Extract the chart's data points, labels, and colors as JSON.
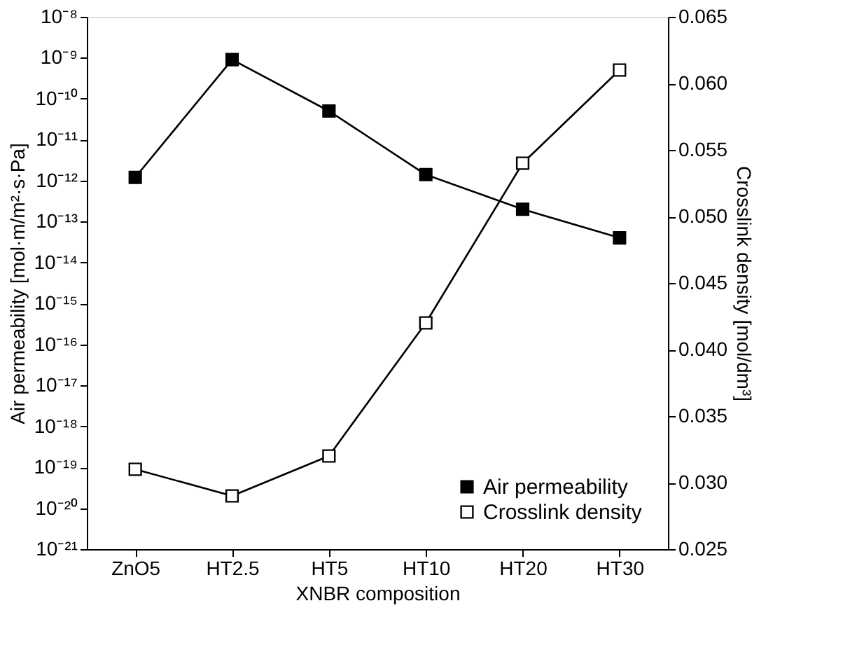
{
  "chart_data": {
    "type": "line",
    "xlabel": "XNBR composition",
    "ylabel": "Air permeability [mol·m/m²·s·Pa]",
    "y2label": "Crosslink density [mol/dm³]",
    "categories": [
      "ZnO5",
      "HT2.5",
      "HT5",
      "HT10",
      "HT20",
      "HT30"
    ],
    "series": [
      {
        "name": "Air permeability",
        "color": "#000000",
        "values": [
          1.2e-12,
          9e-10,
          5e-11,
          1.4e-12,
          2e-13,
          4e-14
        ]
      },
      {
        "name": "Crosslink density",
        "color": "#ffffff",
        "axis": "y2",
        "values": [
          0.031,
          0.029,
          0.032,
          0.042,
          0.054,
          0.061
        ]
      }
    ],
    "log": "y",
    "ylim": [
      1e-21,
      1e-08
    ],
    "yticks": [
      {
        "value": 1e-21,
        "label": "10⁻²¹"
      },
      {
        "value": 1e-20,
        "label": "10⁻²⁰"
      },
      {
        "value": 1e-19,
        "label": "10⁻¹⁹"
      },
      {
        "value": 1e-18,
        "label": "10⁻¹⁸"
      },
      {
        "value": 1e-17,
        "label": "10⁻¹⁷"
      },
      {
        "value": 1e-16,
        "label": "10⁻¹⁶"
      },
      {
        "value": 1e-15,
        "label": "10⁻¹⁵"
      },
      {
        "value": 1e-14,
        "label": "10⁻¹⁴"
      },
      {
        "value": 1e-13,
        "label": "10⁻¹³"
      },
      {
        "value": 1e-12,
        "label": "10⁻¹²"
      },
      {
        "value": 1e-11,
        "label": "10⁻¹¹"
      },
      {
        "value": 1e-10,
        "label": "10⁻¹⁰"
      },
      {
        "value": 1e-09,
        "label": "10⁻⁹"
      },
      {
        "value": 1e-08,
        "label": "10⁻⁸"
      }
    ],
    "y2lim": [
      0.025,
      0.065
    ],
    "y2ticks": [
      {
        "value": 0.025,
        "label": "0.025"
      },
      {
        "value": 0.03,
        "label": "0.030"
      },
      {
        "value": 0.035,
        "label": "0.035"
      },
      {
        "value": 0.04,
        "label": "0.040"
      },
      {
        "value": 0.045,
        "label": "0.045"
      },
      {
        "value": 0.05,
        "label": "0.050"
      },
      {
        "value": 0.055,
        "label": "0.055"
      },
      {
        "value": 0.06,
        "label": "0.060"
      },
      {
        "value": 0.065,
        "label": "0.065"
      }
    ],
    "grid": false,
    "legend": "bottom right",
    "marker": "square",
    "line_style": "solid"
  }
}
